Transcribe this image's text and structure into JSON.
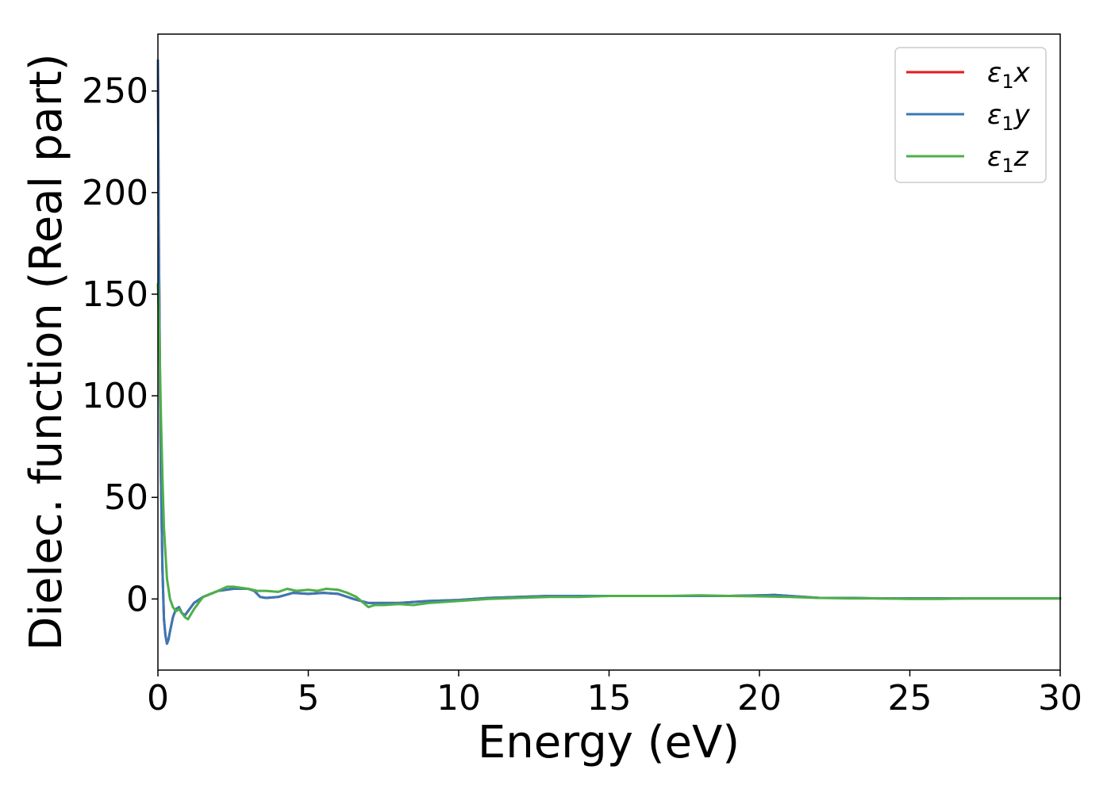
{
  "chart_data": {
    "type": "line",
    "title": "",
    "xlabel": "Energy (eV)",
    "ylabel": "Dielec. function (Real part)",
    "xlim": [
      0,
      30
    ],
    "ylim": [
      -35,
      278
    ],
    "xticks": [
      0,
      5,
      10,
      15,
      20,
      25,
      30
    ],
    "xtick_labels": [
      "0",
      "5",
      "10",
      "15",
      "20",
      "25",
      "30"
    ],
    "yticks": [
      0,
      50,
      100,
      150,
      200,
      250
    ],
    "ytick_labels": [
      "0",
      "50",
      "100",
      "150",
      "200",
      "250"
    ],
    "grid": false,
    "legend": {
      "placement": "top-right"
    },
    "series": [
      {
        "name": "ε1x",
        "legend_main": "ε",
        "legend_sub": "1",
        "legend_tail": "x",
        "color": "#e41a1c",
        "x": [
          0.0,
          0.03,
          0.06,
          0.1,
          0.15,
          0.2,
          0.25,
          0.3,
          0.35,
          0.4,
          0.5,
          0.6,
          0.7,
          0.8,
          0.9,
          1.0,
          1.2,
          1.5,
          2.0,
          2.5,
          3.0,
          3.2,
          3.4,
          3.6,
          4.0,
          4.5,
          5.0,
          5.5,
          6.0,
          6.5,
          7.0,
          7.5,
          8.0,
          9.0,
          10.0,
          11.0,
          12.0,
          13.0,
          14.0,
          15.0,
          16.0,
          17.0,
          18.0,
          19.0,
          20.0,
          20.5,
          21.0,
          21.5,
          22.0,
          23.0,
          24.0,
          25.0,
          26.0,
          27.0,
          28.0,
          29.0,
          30.0
        ],
        "y": [
          265,
          180,
          120,
          60,
          15,
          -10,
          -18,
          -22,
          -20,
          -16,
          -9,
          -5,
          -4,
          -7,
          -8,
          -6,
          -2,
          1,
          4,
          5,
          5,
          4,
          1,
          0.5,
          1,
          3,
          2.5,
          3,
          2.5,
          0,
          -2,
          -2,
          -2,
          -1,
          -0.5,
          0.5,
          1,
          1.5,
          1.5,
          1.5,
          1.5,
          1.5,
          1.5,
          1.5,
          1.8,
          2,
          1.5,
          1,
          0.5,
          0.5,
          0.3,
          0.3,
          0.3,
          0.3,
          0.3,
          0.3,
          0.3
        ]
      },
      {
        "name": "ε1y",
        "legend_main": "ε",
        "legend_sub": "1",
        "legend_tail": "y",
        "color": "#3a78b5",
        "x": [
          0.0,
          0.03,
          0.06,
          0.1,
          0.15,
          0.2,
          0.25,
          0.3,
          0.35,
          0.4,
          0.5,
          0.6,
          0.7,
          0.8,
          0.9,
          1.0,
          1.2,
          1.5,
          2.0,
          2.5,
          3.0,
          3.2,
          3.4,
          3.6,
          4.0,
          4.5,
          5.0,
          5.5,
          6.0,
          6.5,
          7.0,
          7.5,
          8.0,
          9.0,
          10.0,
          11.0,
          12.0,
          13.0,
          14.0,
          15.0,
          16.0,
          17.0,
          18.0,
          19.0,
          20.0,
          20.5,
          21.0,
          21.5,
          22.0,
          23.0,
          24.0,
          25.0,
          26.0,
          27.0,
          28.0,
          29.0,
          30.0
        ],
        "y": [
          265,
          180,
          120,
          60,
          15,
          -10,
          -18,
          -22,
          -20,
          -16,
          -9,
          -5,
          -4,
          -7,
          -8,
          -6,
          -2,
          1,
          4,
          5,
          5,
          4,
          1,
          0.5,
          1,
          3,
          2.5,
          3,
          2.5,
          0,
          -2,
          -2,
          -2,
          -1,
          -0.5,
          0.5,
          1,
          1.5,
          1.5,
          1.5,
          1.5,
          1.5,
          1.5,
          1.5,
          1.8,
          2,
          1.5,
          1,
          0.5,
          0.5,
          0.3,
          0.3,
          0.3,
          0.3,
          0.3,
          0.3,
          0.3
        ]
      },
      {
        "name": "ε1z",
        "legend_main": "ε",
        "legend_sub": "1",
        "legend_tail": "z",
        "color": "#4daf4a",
        "x": [
          0.0,
          0.03,
          0.06,
          0.1,
          0.15,
          0.2,
          0.3,
          0.4,
          0.5,
          0.6,
          0.7,
          0.8,
          0.9,
          1.0,
          1.2,
          1.5,
          2.0,
          2.3,
          2.5,
          3.0,
          3.3,
          3.6,
          4.0,
          4.3,
          4.6,
          5.0,
          5.3,
          5.6,
          6.0,
          6.3,
          6.6,
          7.0,
          7.2,
          7.5,
          8.0,
          8.5,
          9.0,
          10.0,
          11.0,
          12.0,
          13.0,
          14.0,
          15.0,
          16.0,
          17.0,
          18.0,
          19.0,
          20.0,
          21.0,
          22.0,
          23.0,
          24.0,
          25.0,
          26.0,
          27.0,
          28.0,
          29.0,
          30.0
        ],
        "y": [
          155,
          140,
          120,
          90,
          60,
          35,
          10,
          0,
          -4,
          -6,
          -5,
          -7,
          -9,
          -10,
          -5,
          1,
          4,
          6,
          6,
          5,
          4,
          4,
          3.5,
          5,
          4,
          4.5,
          4,
          5,
          4.5,
          3,
          1,
          -4,
          -3,
          -3,
          -2.5,
          -3,
          -2,
          -1,
          0,
          0.5,
          1,
          1,
          1.5,
          1.5,
          1.5,
          1.8,
          1.5,
          1.3,
          1,
          0.5,
          0.3,
          0.3,
          0,
          0,
          0.3,
          0.3,
          0.3,
          0.3
        ]
      }
    ]
  }
}
